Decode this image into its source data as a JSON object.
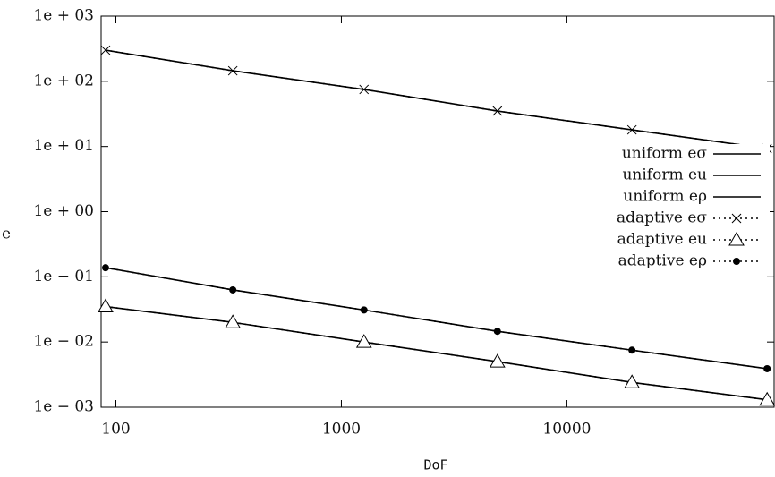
{
  "chart_data": {
    "type": "line",
    "x_label": "DoF",
    "y_label": "e",
    "x": [
      90,
      330,
      1260,
      4920,
      19440,
      77280
    ],
    "xscale": "log",
    "yscale": "log",
    "xlim": [
      86,
      83000
    ],
    "ylim": [
      0.001,
      1000
    ],
    "xticks": [
      100,
      1000,
      10000
    ],
    "yticks": [
      {
        "value": 1000,
        "label": "1e + 03"
      },
      {
        "value": 100,
        "label": "1e + 02"
      },
      {
        "value": 10,
        "label": "1e + 01"
      },
      {
        "value": 1,
        "label": "1e + 00"
      },
      {
        "value": 0.1,
        "label": "1e − 01"
      },
      {
        "value": 0.01,
        "label": "1e − 02"
      },
      {
        "value": 0.001,
        "label": "1e − 03"
      }
    ],
    "legend": "right",
    "series": [
      {
        "name": "uniform eσ",
        "color": "#000000",
        "style": "solid",
        "marker": "none",
        "values": [
          300,
          145,
          75,
          35,
          18,
          9.3
        ]
      },
      {
        "name": "uniform eu",
        "color": "#000000",
        "style": "solid",
        "marker": "none",
        "values": [
          0.035,
          0.02,
          0.01,
          0.005,
          0.0024,
          0.0013
        ]
      },
      {
        "name": "uniform eρ",
        "color": "#000000",
        "style": "solid",
        "marker": "none",
        "values": [
          0.138,
          0.063,
          0.031,
          0.0146,
          0.0075,
          0.0039
        ]
      },
      {
        "name": "adaptive eσ",
        "color": "#000000",
        "style": "dotted",
        "marker": "x",
        "values": [
          300,
          145,
          75,
          35,
          18,
          9.3
        ]
      },
      {
        "name": "adaptive eu",
        "color": "#000000",
        "style": "dotted",
        "marker": "triangle",
        "values": [
          0.035,
          0.02,
          0.01,
          0.005,
          0.0024,
          0.0013
        ]
      },
      {
        "name": "adaptive eρ",
        "color": "#000000",
        "style": "dotted",
        "marker": "dot",
        "values": [
          0.138,
          0.063,
          0.031,
          0.0146,
          0.0075,
          0.0039
        ]
      }
    ]
  }
}
